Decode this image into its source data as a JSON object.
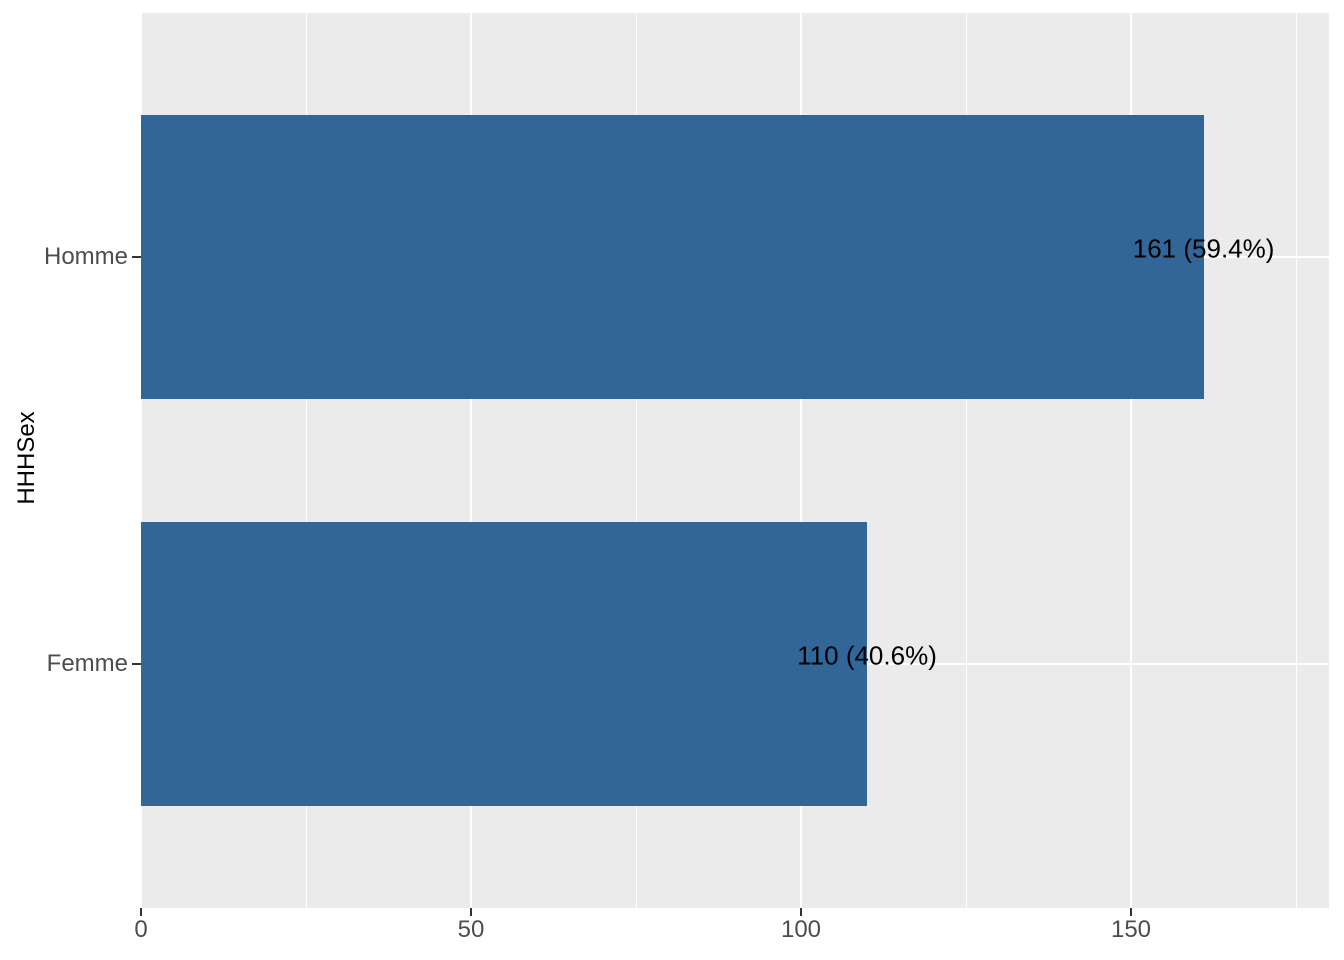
{
  "chart_data": {
    "type": "bar",
    "orientation": "horizontal",
    "title": "",
    "xlabel": "",
    "ylabel": "HHHSex",
    "categories": [
      "Homme",
      "Femme"
    ],
    "values": [
      161,
      110
    ],
    "bar_labels": [
      "161 (59.4%)",
      "110 (40.6%)"
    ],
    "percentages": [
      59.4,
      40.6
    ],
    "x_ticks": [
      0,
      50,
      100,
      150
    ],
    "x_minor_ticks": [
      25,
      75,
      125,
      175
    ],
    "xlim": [
      0,
      180
    ],
    "bar_width_fraction": 0.7,
    "legend": "none",
    "grid": "on",
    "colors": {
      "bar_fill": "#336698",
      "panel_background": "#EBEBEB",
      "gridline": "#FFFFFF",
      "axis_text": "#4D4D4D",
      "tick_mark": "#333333",
      "label_text": "#000000",
      "page_background": "#FFFFFF"
    }
  }
}
